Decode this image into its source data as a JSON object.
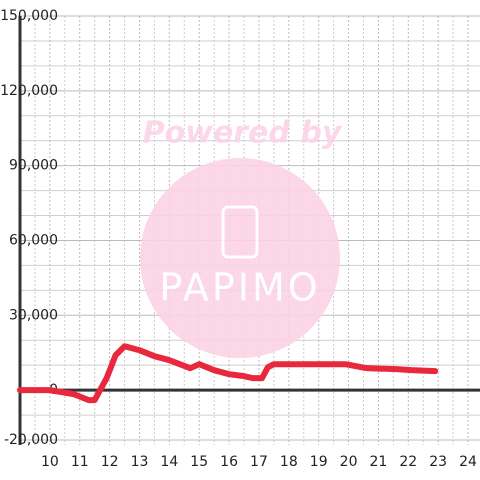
{
  "chart_data": {
    "type": "line",
    "watermark": {
      "text": "Powered by",
      "logo": "PAPIMO"
    },
    "series": [
      {
        "color": "#e8283c",
        "x": [
          9,
          10,
          10.8,
          11.3,
          11.5,
          11.9,
          12.2,
          12.5,
          13.0,
          13.5,
          14.0,
          14.7,
          15.0,
          15.5,
          16.0,
          16.5,
          16.8,
          17.1,
          17.3,
          17.5,
          19.9,
          20.6,
          21.6,
          22.1,
          22.9
        ],
        "values": [
          0,
          0,
          -1600,
          -4000,
          -4000,
          4800,
          14000,
          17600,
          16000,
          13600,
          12000,
          8800,
          10400,
          8000,
          6400,
          5600,
          4800,
          4800,
          9200,
          10400,
          10400,
          8800,
          8400,
          8000,
          7600
        ]
      }
    ],
    "xlim": [
      9,
      24.4
    ],
    "xticks": [
      10,
      11,
      12,
      13,
      14,
      15,
      16,
      17,
      18,
      19,
      20,
      21,
      22,
      23,
      24
    ],
    "minor_xticks": [
      9.5,
      10.5,
      11.5,
      12.5,
      13.5,
      14.5,
      15.5,
      16.5,
      17.5,
      18.5,
      19.5,
      20.5,
      21.5,
      22.5,
      23.5
    ],
    "ylim": [
      -22000,
      150000
    ],
    "yticks": [
      {
        "value": -20000,
        "label": "-20,000"
      },
      0,
      {
        "value": 30000,
        "label": "30,000"
      },
      {
        "value": 60000,
        "label": "60,000"
      },
      {
        "value": 90000,
        "label": "90,000"
      },
      {
        "value": 120000,
        "label": "120,000"
      },
      {
        "value": 150000,
        "label": "150,000"
      }
    ],
    "minor_yticks": [
      -10000,
      10000,
      20000,
      40000,
      50000,
      70000,
      80000,
      100000,
      110000,
      130000,
      140000
    ],
    "grid": true
  }
}
